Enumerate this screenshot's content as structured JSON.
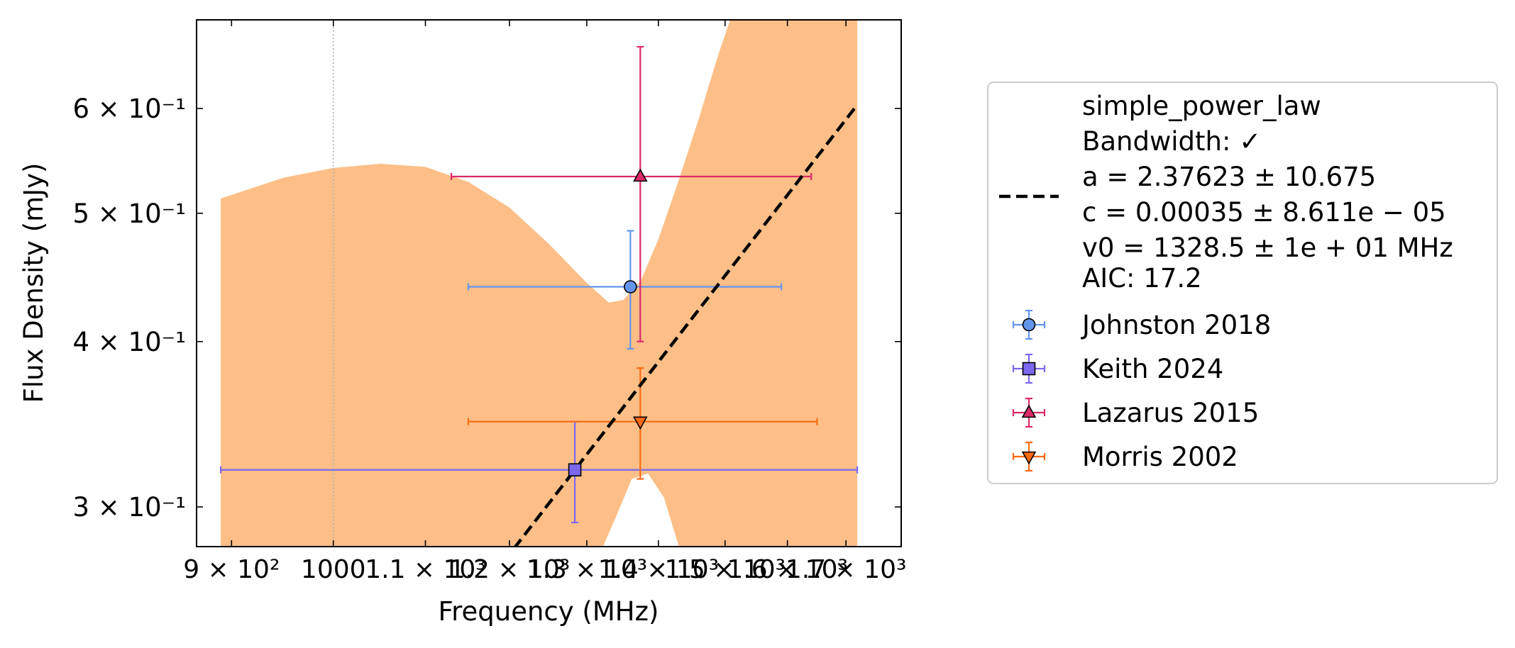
{
  "chart_data": {
    "type": "scatter",
    "title": "",
    "xlabel": "Frequency (MHz)",
    "ylabel": "Flux Density (mJy)",
    "x_scale": "log",
    "y_scale": "log",
    "xlim": [
      868,
      1800
    ],
    "ylim": [
      0.28,
      0.7
    ],
    "x_ticks": [
      {
        "value": 900,
        "label": "9 × 10²"
      },
      {
        "value": 1000,
        "label": "1000"
      },
      {
        "value": 1100,
        "label": "1.1 × 10³"
      },
      {
        "value": 1200,
        "label": "1.2 × 10³"
      },
      {
        "value": 1300,
        "label": "1.3 × 10³"
      },
      {
        "value": 1400,
        "label": "1.4 × 10³"
      },
      {
        "value": 1500,
        "label": "1.5 × 10³"
      },
      {
        "value": 1600,
        "label": "1.6 × 10³"
      },
      {
        "value": 1700,
        "label": "1.7 × 10³"
      }
    ],
    "y_ticks": [
      {
        "value": 0.3,
        "label": "3 × 10⁻¹"
      },
      {
        "value": 0.4,
        "label": "4 × 10⁻¹"
      },
      {
        "value": 0.5,
        "label": "5 × 10⁻¹"
      },
      {
        "value": 0.6,
        "label": "6 × 10⁻¹"
      }
    ],
    "reference_line_x": 1000,
    "model": {
      "name": "simple_power_law",
      "legend_lines": [
        "simple_power_law",
        "Bandwidth: ✓",
        "a = 2.37623 ± 10.675",
        "c = 0.00035 ± 8.611e − 05",
        "v0 = 1328.5 ± 1e + 01 MHz",
        "AIC: 17.2"
      ],
      "a": 2.37623,
      "c": 0.00035,
      "v0": 1328.5,
      "line_color": "#000000",
      "band_color": "#fdbf87"
    },
    "band": {
      "lower": [
        {
          "x": 1322,
          "y": 0.28
        },
        {
          "x": 1340,
          "y": 0.295
        },
        {
          "x": 1362,
          "y": 0.315
        },
        {
          "x": 1385,
          "y": 0.318
        },
        {
          "x": 1408,
          "y": 0.305
        },
        {
          "x": 1430,
          "y": 0.28
        }
      ],
      "upper": [
        {
          "x": 890,
          "y": 0.513
        },
        {
          "x": 950,
          "y": 0.532
        },
        {
          "x": 1000,
          "y": 0.541
        },
        {
          "x": 1050,
          "y": 0.545
        },
        {
          "x": 1100,
          "y": 0.542
        },
        {
          "x": 1150,
          "y": 0.528
        },
        {
          "x": 1200,
          "y": 0.505
        },
        {
          "x": 1250,
          "y": 0.474
        },
        {
          "x": 1300,
          "y": 0.443
        },
        {
          "x": 1330,
          "y": 0.428
        },
        {
          "x": 1350,
          "y": 0.43
        },
        {
          "x": 1375,
          "y": 0.445
        },
        {
          "x": 1400,
          "y": 0.478
        },
        {
          "x": 1430,
          "y": 0.53
        },
        {
          "x": 1460,
          "y": 0.59
        },
        {
          "x": 1490,
          "y": 0.66
        },
        {
          "x": 1508,
          "y": 0.7
        }
      ],
      "x_end": 1720
    },
    "series": [
      {
        "name": "Johnston 2018",
        "marker": "circle",
        "color": "#6495ed",
        "x": 1360,
        "y": 0.44,
        "xerr_low": 1150,
        "xerr_high": 1590,
        "yerr_low": 0.395,
        "yerr_high": 0.485
      },
      {
        "name": "Keith 2024",
        "marker": "square",
        "color": "#7b68ee",
        "x": 1284,
        "y": 0.32,
        "xerr_low": 890,
        "xerr_high": 1720,
        "yerr_low": 0.292,
        "yerr_high": 0.348
      },
      {
        "name": "Lazarus 2015",
        "marker": "triangle-up",
        "color": "#dc2a6a",
        "x": 1374,
        "y": 0.533,
        "xerr_low": 1130,
        "xerr_high": 1640,
        "yerr_low": 0.4,
        "yerr_high": 0.668
      },
      {
        "name": "Morris 2002",
        "marker": "triangle-down",
        "color": "#ff6a14",
        "x": 1374,
        "y": 0.348,
        "xerr_low": 1150,
        "xerr_high": 1650,
        "yerr_low": 0.315,
        "yerr_high": 0.382
      }
    ],
    "legend_placement": "outside-right",
    "grid": false
  }
}
